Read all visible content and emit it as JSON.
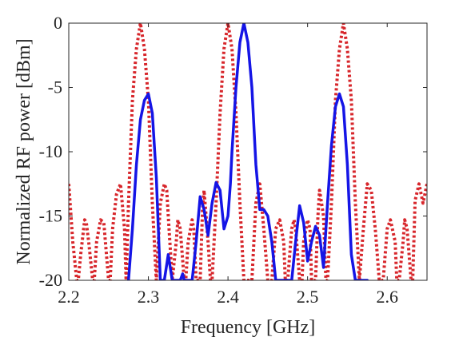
{
  "chart_data": {
    "type": "line",
    "title": "",
    "xlabel": "Frequency [GHz]",
    "ylabel": "Normalized RF power [dBm]",
    "xlim": [
      2.2,
      2.65
    ],
    "ylim": [
      -20,
      0
    ],
    "x_ticks": [
      "2.2",
      "2.3",
      "2.4",
      "2.5",
      "2.6"
    ],
    "y_ticks": [
      "0",
      "-5",
      "-10",
      "-15",
      "-20"
    ],
    "grid": false,
    "legend": "none",
    "series": [
      {
        "style": "dotted",
        "color": "#d7262b",
        "x": [
          2.2,
          2.205,
          2.21,
          2.212,
          2.215,
          2.22,
          2.222,
          2.225,
          2.23,
          2.232,
          2.235,
          2.24,
          2.244,
          2.25,
          2.252,
          2.255,
          2.26,
          2.265,
          2.27,
          2.272,
          2.275,
          2.28,
          2.285,
          2.29,
          2.295,
          2.3,
          2.305,
          2.31,
          2.315,
          2.32,
          2.323,
          2.326,
          2.33,
          2.335,
          2.337,
          2.34,
          2.345,
          2.347,
          2.35,
          2.355,
          2.357,
          2.36,
          2.365,
          2.368,
          2.37,
          2.375,
          2.378,
          2.38,
          2.385,
          2.39,
          2.395,
          2.4,
          2.405,
          2.41,
          2.415,
          2.42,
          2.425,
          2.43,
          2.435,
          2.44,
          2.445,
          2.45,
          2.455,
          2.46,
          2.465,
          2.47,
          2.472,
          2.475,
          2.48,
          2.483,
          2.485,
          2.49,
          2.493,
          2.495,
          2.5,
          2.503,
          2.505,
          2.51,
          2.513,
          2.515,
          2.52,
          2.523,
          2.525,
          2.53,
          2.535,
          2.54,
          2.545,
          2.55,
          2.555,
          2.56,
          2.565,
          2.57,
          2.575,
          2.58,
          2.585,
          2.59,
          2.595,
          2.6,
          2.604,
          2.61,
          2.612,
          2.615,
          2.62,
          2.622,
          2.625,
          2.63,
          2.632,
          2.635,
          2.64,
          2.645,
          2.65
        ],
        "y": [
          -12.5,
          -17,
          -20,
          -20,
          -18,
          -15.3,
          -15.5,
          -17,
          -20,
          -20,
          -17,
          -15.3,
          -15.5,
          -20,
          -20,
          -16,
          -13.3,
          -12.5,
          -16,
          -20,
          -14,
          -6,
          -2,
          0,
          -2,
          -6,
          -14,
          -20,
          -14,
          -12.5,
          -13,
          -16,
          -20,
          -17,
          -15.3,
          -16,
          -20,
          -20,
          -17,
          -15.3,
          -16,
          -20,
          -20,
          -14.5,
          -13,
          -17,
          -20,
          -20,
          -14,
          -7,
          -2,
          0,
          -2,
          -7,
          -14,
          -20,
          -20,
          -20,
          -14,
          -12.5,
          -16,
          -20,
          -20,
          -16,
          -15.3,
          -17,
          -20,
          -20,
          -16,
          -15.3,
          -16,
          -20,
          -20,
          -17,
          -15.3,
          -16,
          -20,
          -20,
          -15,
          -13,
          -15,
          -20,
          -20,
          -14,
          -6,
          -2,
          0,
          -2,
          -6,
          -14,
          -20,
          -16,
          -12.5,
          -13,
          -16,
          -20,
          -20,
          -16,
          -15.3,
          -17,
          -20,
          -20,
          -17,
          -15.3,
          -16,
          -20,
          -20,
          -13.8,
          -12.5,
          -14,
          -12.5
        ]
      },
      {
        "style": "solid",
        "color": "#1515e6",
        "x": [
          2.275,
          2.28,
          2.285,
          2.29,
          2.295,
          2.3,
          2.305,
          2.31,
          2.315,
          2.32,
          2.325,
          2.33,
          2.335,
          2.34,
          2.343,
          2.345,
          2.348,
          2.35,
          2.355,
          2.36,
          2.365,
          2.37,
          2.375,
          2.38,
          2.385,
          2.39,
          2.395,
          2.4,
          2.403,
          2.405,
          2.41,
          2.415,
          2.42,
          2.425,
          2.43,
          2.435,
          2.44,
          2.445,
          2.45,
          2.455,
          2.46,
          2.465,
          2.47,
          2.475,
          2.48,
          2.485,
          2.49,
          2.495,
          2.5,
          2.505,
          2.51,
          2.515,
          2.52,
          2.525,
          2.53,
          2.535,
          2.54,
          2.545,
          2.55,
          2.555,
          2.56,
          2.565,
          2.57,
          2.575
        ],
        "y": [
          -20,
          -16,
          -11,
          -7.5,
          -6,
          -5.5,
          -7,
          -12,
          -20,
          -20,
          -18,
          -20,
          -20,
          -20,
          -19.5,
          -20,
          -20,
          -20,
          -20,
          -17,
          -13.5,
          -14.5,
          -16.5,
          -14,
          -12.4,
          -13,
          -16,
          -15,
          -12.5,
          -10,
          -5,
          -1.5,
          0,
          -1.5,
          -5,
          -11,
          -14.5,
          -14.5,
          -15,
          -17,
          -20,
          -20,
          -20,
          -20,
          -20,
          -17,
          -14.2,
          -15.5,
          -18.5,
          -17,
          -15.8,
          -16.5,
          -19,
          -14,
          -9.5,
          -6.5,
          -5.5,
          -6.5,
          -11,
          -18,
          -20,
          -20,
          -20,
          -20
        ]
      }
    ]
  }
}
